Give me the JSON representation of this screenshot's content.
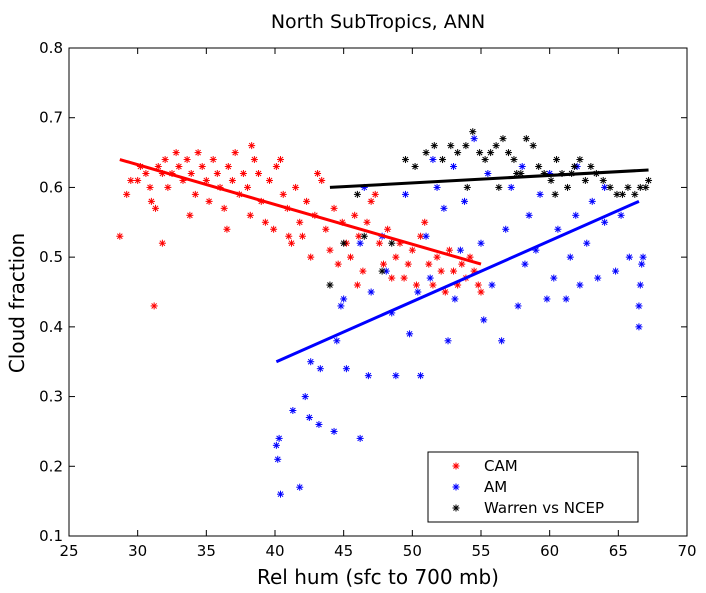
{
  "chart_data": {
    "type": "scatter",
    "title": "North SubTropics,  ANN",
    "xlabel": "Rel hum (sfc to 700 mb)",
    "ylabel": "Cloud fraction",
    "xlim": [
      25,
      70
    ],
    "ylim": [
      0.1,
      0.8
    ],
    "x_ticks": [
      "25",
      "30",
      "35",
      "40",
      "45",
      "50",
      "55",
      "60",
      "65",
      "70"
    ],
    "y_ticks": [
      "0.1",
      "0.2",
      "0.3",
      "0.4",
      "0.5",
      "0.6",
      "0.7",
      "0.8"
    ],
    "grid": false,
    "legend_position": "bottom-right",
    "series": [
      {
        "name": "CAM",
        "color": "#ff0000",
        "marker": "asterisk",
        "points": [
          [
            28.7,
            0.53
          ],
          [
            29.2,
            0.59
          ],
          [
            29.5,
            0.61
          ],
          [
            30.0,
            0.61
          ],
          [
            30.2,
            0.63
          ],
          [
            30.6,
            0.62
          ],
          [
            30.9,
            0.6
          ],
          [
            31.0,
            0.58
          ],
          [
            31.3,
            0.57
          ],
          [
            31.5,
            0.63
          ],
          [
            31.8,
            0.62
          ],
          [
            32.0,
            0.64
          ],
          [
            32.2,
            0.6
          ],
          [
            32.5,
            0.62
          ],
          [
            32.8,
            0.65
          ],
          [
            33.0,
            0.63
          ],
          [
            33.3,
            0.61
          ],
          [
            33.6,
            0.64
          ],
          [
            33.9,
            0.62
          ],
          [
            34.2,
            0.59
          ],
          [
            34.4,
            0.65
          ],
          [
            34.7,
            0.63
          ],
          [
            35.0,
            0.61
          ],
          [
            35.2,
            0.58
          ],
          [
            35.5,
            0.64
          ],
          [
            35.8,
            0.62
          ],
          [
            36.0,
            0.6
          ],
          [
            36.3,
            0.57
          ],
          [
            36.6,
            0.63
          ],
          [
            36.9,
            0.61
          ],
          [
            37.1,
            0.65
          ],
          [
            37.4,
            0.59
          ],
          [
            37.7,
            0.62
          ],
          [
            38.0,
            0.6
          ],
          [
            38.2,
            0.56
          ],
          [
            38.5,
            0.64
          ],
          [
            38.8,
            0.62
          ],
          [
            39.0,
            0.58
          ],
          [
            39.3,
            0.55
          ],
          [
            39.6,
            0.61
          ],
          [
            39.9,
            0.54
          ],
          [
            40.1,
            0.63
          ],
          [
            40.4,
            0.64
          ],
          [
            40.6,
            0.59
          ],
          [
            40.9,
            0.57
          ],
          [
            41.2,
            0.52
          ],
          [
            41.5,
            0.6
          ],
          [
            41.8,
            0.55
          ],
          [
            42.0,
            0.53
          ],
          [
            42.3,
            0.58
          ],
          [
            42.6,
            0.5
          ],
          [
            42.9,
            0.56
          ],
          [
            43.1,
            0.62
          ],
          [
            43.4,
            0.61
          ],
          [
            43.7,
            0.54
          ],
          [
            44.0,
            0.51
          ],
          [
            44.3,
            0.57
          ],
          [
            44.6,
            0.49
          ],
          [
            44.9,
            0.55
          ],
          [
            45.2,
            0.52
          ],
          [
            45.5,
            0.5
          ],
          [
            45.8,
            0.56
          ],
          [
            46.1,
            0.53
          ],
          [
            46.4,
            0.48
          ],
          [
            46.7,
            0.55
          ],
          [
            47.0,
            0.58
          ],
          [
            47.3,
            0.59
          ],
          [
            47.6,
            0.52
          ],
          [
            47.9,
            0.49
          ],
          [
            48.2,
            0.54
          ],
          [
            48.5,
            0.47
          ],
          [
            48.8,
            0.5
          ],
          [
            49.1,
            0.52
          ],
          [
            49.4,
            0.47
          ],
          [
            49.7,
            0.49
          ],
          [
            50.0,
            0.51
          ],
          [
            50.3,
            0.46
          ],
          [
            50.6,
            0.53
          ],
          [
            50.9,
            0.55
          ],
          [
            51.2,
            0.49
          ],
          [
            51.5,
            0.46
          ],
          [
            51.8,
            0.5
          ],
          [
            52.1,
            0.48
          ],
          [
            52.4,
            0.45
          ],
          [
            52.7,
            0.51
          ],
          [
            53.0,
            0.48
          ],
          [
            53.3,
            0.46
          ],
          [
            53.6,
            0.49
          ],
          [
            53.9,
            0.47
          ],
          [
            54.2,
            0.5
          ],
          [
            54.5,
            0.48
          ],
          [
            54.8,
            0.46
          ],
          [
            55.0,
            0.45
          ],
          [
            31.2,
            0.43
          ],
          [
            31.8,
            0.52
          ],
          [
            36.5,
            0.54
          ],
          [
            33.8,
            0.56
          ],
          [
            38.3,
            0.66
          ],
          [
            41.0,
            0.53
          ],
          [
            46.0,
            0.46
          ]
        ],
        "fit_line": [
          [
            28.7,
            0.64
          ],
          [
            55.0,
            0.49
          ]
        ]
      },
      {
        "name": "AM",
        "color": "#0000ff",
        "marker": "asterisk",
        "points": [
          [
            40.1,
            0.23
          ],
          [
            40.2,
            0.21
          ],
          [
            40.3,
            0.24
          ],
          [
            40.4,
            0.16
          ],
          [
            41.3,
            0.28
          ],
          [
            41.8,
            0.17
          ],
          [
            42.2,
            0.3
          ],
          [
            42.5,
            0.27
          ],
          [
            42.6,
            0.35
          ],
          [
            43.2,
            0.26
          ],
          [
            43.3,
            0.34
          ],
          [
            44.3,
            0.25
          ],
          [
            44.5,
            0.38
          ],
          [
            45.2,
            0.34
          ],
          [
            46.2,
            0.24
          ],
          [
            44.8,
            0.43
          ],
          [
            45.0,
            0.44
          ],
          [
            46.8,
            0.33
          ],
          [
            47.0,
            0.45
          ],
          [
            48.8,
            0.33
          ],
          [
            48.5,
            0.42
          ],
          [
            48.1,
            0.48
          ],
          [
            47.8,
            0.53
          ],
          [
            49.8,
            0.39
          ],
          [
            50.4,
            0.45
          ],
          [
            50.6,
            0.33
          ],
          [
            51.3,
            0.47
          ],
          [
            51.0,
            0.53
          ],
          [
            52.3,
            0.57
          ],
          [
            52.6,
            0.38
          ],
          [
            53.1,
            0.44
          ],
          [
            53.5,
            0.51
          ],
          [
            53.8,
            0.58
          ],
          [
            55.2,
            0.41
          ],
          [
            55.0,
            0.52
          ],
          [
            55.8,
            0.46
          ],
          [
            56.5,
            0.38
          ],
          [
            56.8,
            0.54
          ],
          [
            57.2,
            0.6
          ],
          [
            57.7,
            0.43
          ],
          [
            58.2,
            0.49
          ],
          [
            58.5,
            0.56
          ],
          [
            59.0,
            0.51
          ],
          [
            59.3,
            0.59
          ],
          [
            59.8,
            0.44
          ],
          [
            60.3,
            0.47
          ],
          [
            60.6,
            0.54
          ],
          [
            61.2,
            0.44
          ],
          [
            61.5,
            0.5
          ],
          [
            61.9,
            0.56
          ],
          [
            62.2,
            0.46
          ],
          [
            62.7,
            0.52
          ],
          [
            63.1,
            0.58
          ],
          [
            63.5,
            0.47
          ],
          [
            64.0,
            0.55
          ],
          [
            64.8,
            0.48
          ],
          [
            65.2,
            0.56
          ],
          [
            65.8,
            0.5
          ],
          [
            66.5,
            0.4
          ],
          [
            66.5,
            0.43
          ],
          [
            66.6,
            0.46
          ],
          [
            66.7,
            0.49
          ],
          [
            66.8,
            0.5
          ],
          [
            51.5,
            0.64
          ],
          [
            53.0,
            0.63
          ],
          [
            54.5,
            0.67
          ],
          [
            55.5,
            0.62
          ],
          [
            58.0,
            0.63
          ],
          [
            60.0,
            0.62
          ],
          [
            62.0,
            0.63
          ],
          [
            64.0,
            0.6
          ],
          [
            49.5,
            0.59
          ],
          [
            46.5,
            0.6
          ],
          [
            46.2,
            0.52
          ],
          [
            51.8,
            0.6
          ]
        ],
        "fit_line": [
          [
            40.1,
            0.35
          ],
          [
            66.5,
            0.58
          ]
        ]
      },
      {
        "name": "Warren vs NCEP",
        "color": "#000000",
        "marker": "asterisk",
        "points": [
          [
            44.0,
            0.46
          ],
          [
            45.0,
            0.52
          ],
          [
            46.5,
            0.53
          ],
          [
            47.8,
            0.48
          ],
          [
            48.5,
            0.52
          ],
          [
            49.5,
            0.64
          ],
          [
            50.2,
            0.63
          ],
          [
            51.0,
            0.65
          ],
          [
            51.6,
            0.66
          ],
          [
            52.2,
            0.64
          ],
          [
            52.8,
            0.66
          ],
          [
            53.3,
            0.65
          ],
          [
            53.9,
            0.66
          ],
          [
            54.4,
            0.68
          ],
          [
            54.9,
            0.65
          ],
          [
            55.3,
            0.64
          ],
          [
            55.7,
            0.65
          ],
          [
            56.1,
            0.66
          ],
          [
            56.6,
            0.67
          ],
          [
            57.0,
            0.65
          ],
          [
            57.4,
            0.64
          ],
          [
            57.9,
            0.62
          ],
          [
            58.3,
            0.67
          ],
          [
            58.8,
            0.66
          ],
          [
            59.2,
            0.63
          ],
          [
            59.6,
            0.62
          ],
          [
            60.1,
            0.61
          ],
          [
            60.5,
            0.64
          ],
          [
            60.9,
            0.62
          ],
          [
            61.3,
            0.6
          ],
          [
            61.8,
            0.63
          ],
          [
            62.2,
            0.64
          ],
          [
            62.6,
            0.61
          ],
          [
            63.0,
            0.63
          ],
          [
            63.4,
            0.62
          ],
          [
            63.9,
            0.61
          ],
          [
            64.4,
            0.6
          ],
          [
            64.9,
            0.59
          ],
          [
            65.3,
            0.59
          ],
          [
            65.7,
            0.6
          ],
          [
            66.2,
            0.59
          ],
          [
            66.6,
            0.6
          ],
          [
            67.0,
            0.6
          ],
          [
            67.2,
            0.61
          ],
          [
            57.6,
            0.62
          ],
          [
            56.3,
            0.6
          ],
          [
            54.0,
            0.6
          ],
          [
            60.4,
            0.59
          ],
          [
            61.6,
            0.62
          ],
          [
            46.0,
            0.59
          ]
        ],
        "fit_line": [
          [
            44.0,
            0.6
          ],
          [
            67.2,
            0.625
          ]
        ]
      }
    ]
  }
}
